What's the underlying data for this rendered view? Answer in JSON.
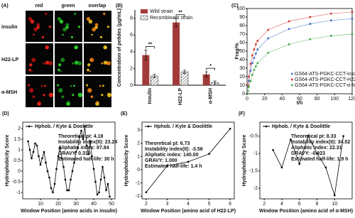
{
  "panel_a": {
    "label": "(A)",
    "columns": [
      "red",
      "green",
      "overlap"
    ],
    "rows": [
      "insulin",
      "H22-LP",
      "α-MSH"
    ]
  },
  "chart_data": [
    {
      "type": "bar",
      "label": "(B)",
      "ylabel": "Concentration of petides (μg/mL)",
      "categories": [
        "Insulin",
        "H22-LP",
        "α-MSH"
      ],
      "series": [
        {
          "name": "Wild strain",
          "color": "#a33a3a",
          "values": [
            3.6,
            7.5,
            1.3
          ],
          "errors": [
            0.6,
            0.5,
            0.3
          ]
        },
        {
          "name": "Recombinant strain",
          "color": "#a33a3a",
          "hatch": true,
          "values": [
            1.1,
            1.6,
            0.3
          ],
          "errors": [
            0.2,
            0.2,
            0.2
          ]
        }
      ],
      "annotations": [
        "**",
        "**",
        "*"
      ],
      "ylim": [
        0,
        9
      ],
      "yticks": [
        0,
        2,
        4,
        6,
        8
      ]
    },
    {
      "type": "scatter",
      "label": "(C)",
      "xlabel": "t/h",
      "ylabel": "Frag/%",
      "x": [
        1,
        2,
        4,
        6,
        8,
        10,
        12,
        24,
        48,
        72,
        96,
        120
      ],
      "series": [
        {
          "name": "GS64-ATS-PGKC-CCT-insulin",
          "color": "#3b6fc4",
          "values": [
            8,
            15,
            27,
            36,
            42,
            47,
            52,
            65,
            76,
            82,
            86,
            88
          ]
        },
        {
          "name": "GS64-ATS-PGKC-CCT-H22-LP",
          "color": "#d03a3a",
          "values": [
            10,
            20,
            35,
            45,
            52,
            58,
            62,
            75,
            85,
            90,
            94,
            96
          ]
        },
        {
          "name": "GS64-ATS-PGKC-CCT-α-MSH",
          "color": "#4caa4c",
          "values": [
            3,
            8,
            15,
            22,
            28,
            32,
            36,
            48,
            58,
            64,
            68,
            70
          ]
        }
      ],
      "xlim": [
        0,
        120
      ],
      "xticks": [
        0,
        20,
        40,
        60,
        80,
        100,
        120
      ],
      "ylim": [
        0,
        100
      ],
      "yticks": [
        0,
        10,
        20,
        30,
        40,
        50,
        60,
        70,
        80,
        90,
        100
      ]
    },
    {
      "type": "line",
      "label": "(D)",
      "xlabel": "Window Position (amino acids in insulin)",
      "ylabel": "Hydrophobicity Score",
      "notes": [
        "Theoretical pI: 4.18",
        "Instability index(II): 23.24",
        "Aliphatic index: 87.84",
        "GRAVY: 0.310",
        "Estimated half-life: 30 h"
      ],
      "x": [
        3,
        4,
        5,
        6,
        7,
        8,
        9,
        10,
        11,
        12,
        13,
        14,
        15,
        16,
        17,
        18,
        19,
        20,
        21,
        22,
        23,
        24,
        25,
        26,
        27,
        28,
        29,
        30,
        31,
        32,
        33,
        34,
        35,
        36,
        37,
        38,
        39,
        40,
        41,
        42,
        43,
        44,
        45,
        46,
        47,
        48,
        49
      ],
      "series": [
        {
          "name": "Hphob. / Kyte & Doolittle",
          "color": "#000000",
          "values": [
            1.4,
            1.0,
            0.6,
            0.9,
            1.3,
            1.2,
            0.7,
            0.3,
            0.6,
            0.9,
            0.4,
            0.0,
            -0.3,
            -0.8,
            -1.0,
            -0.6,
            0.1,
            0.7,
            1.1,
            0.6,
            0.2,
            -0.4,
            -0.9,
            -0.9,
            -0.4,
            0.0,
            0.4,
            0.9,
            1.1,
            1.6,
            1.9,
            1.5,
            2.1,
            1.2,
            0.8,
            1.4,
            0.7,
            0.1,
            -0.5,
            -1.1,
            -1.0,
            -0.4,
            0.2,
            -0.3,
            -0.9,
            -0.6,
            -1.2
          ]
        }
      ],
      "xlim": [
        0,
        52
      ],
      "xticks": [
        10,
        20,
        30,
        40,
        50
      ],
      "ylim": [
        -1.3,
        2.3
      ],
      "yticks": [
        -1,
        -0.5,
        0,
        0.5,
        1,
        1.5,
        2
      ]
    },
    {
      "type": "line",
      "label": "(E)",
      "xlabel": "Window Position (amino acid of H22-LP)",
      "ylabel": "Hydrophobicity Score",
      "notes": [
        "Theoretical pI: 6.73",
        "Instability index(II): -3.56",
        "Aliphatic index: 140.00",
        "GRAVY: 1.000",
        "Estimated half-life: 1.4 h"
      ],
      "x": [
        2,
        3,
        4,
        5,
        6
      ],
      "series": [
        {
          "name": "Hphob. / Kyte & Doolittle",
          "color": "#000000",
          "values": [
            -1.7,
            0.3,
            0.6,
            1.2,
            3.1
          ]
        }
      ],
      "xlim": [
        1.8,
        6.2
      ],
      "xticks": [
        2,
        3,
        4,
        5,
        6
      ],
      "ylim": [
        -2.2,
        3.6
      ],
      "yticks": [
        -2,
        -1,
        0,
        1,
        2,
        3
      ]
    },
    {
      "type": "line",
      "label": "(F)",
      "xlabel": "Window Position (amino acid of α-MSH)",
      "ylabel": "Hydrophobicity Score",
      "notes": [
        "Theoretical pI: 8.33",
        "Instability index(II): 34.02",
        "Aliphatic index: 22.31",
        "GRAVY: -0.923",
        "Estimated half-life: 1.9 h"
      ],
      "x": [
        3,
        4,
        5,
        6,
        7,
        8,
        9,
        10,
        11
      ],
      "series": [
        {
          "name": "Hphob. / Kyte & Doolittle",
          "color": "#000000",
          "values": [
            -0.9,
            -1.4,
            -0.6,
            -1.3,
            -0.5,
            -1.0,
            -1.4,
            -2.2,
            -0.5
          ]
        }
      ],
      "xlim": [
        1.5,
        12
      ],
      "xticks": [
        2,
        4,
        6,
        8,
        10
      ],
      "ylim": [
        -2.3,
        -0.1
      ],
      "yticks": [
        -2,
        -1.5,
        -1,
        -0.5
      ]
    }
  ]
}
